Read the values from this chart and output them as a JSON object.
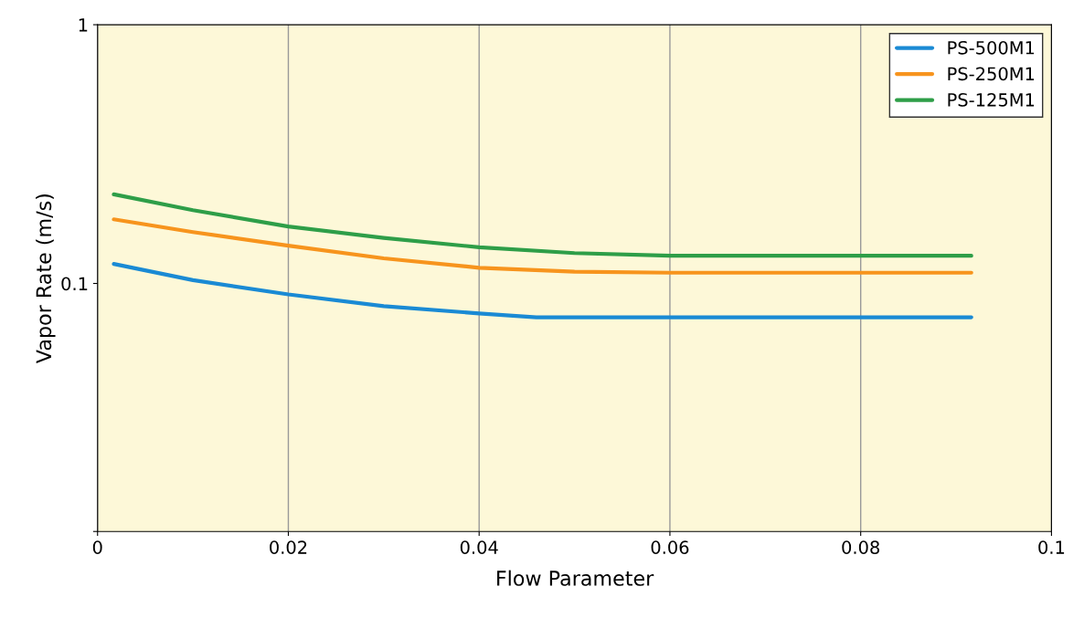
{
  "chart_data": {
    "type": "line",
    "xlabel": "Flow Parameter",
    "ylabel": "Vapor Rate (m/s)",
    "log": "y",
    "xlim": [
      0,
      0.1
    ],
    "xticks": [
      0,
      0.02,
      0.04,
      0.06,
      0.08,
      0.1
    ],
    "ylim": [
      0.011,
      1
    ],
    "yticks": [
      {
        "value": 0.011,
        "label": null
      },
      0.1,
      1
    ],
    "grid": "x",
    "legend": "top right",
    "marker": "none",
    "line_style": "solid",
    "series": [
      {
        "name": "PS-500M1",
        "color": "#1a8ad4",
        "x": [
          0.0017,
          0.01,
          0.02,
          0.03,
          0.04,
          0.046,
          0.06,
          0.08,
          0.0916
        ],
        "values": [
          0.119,
          0.103,
          0.0907,
          0.0817,
          0.0766,
          0.074,
          0.074,
          0.074,
          0.074
        ]
      },
      {
        "name": "PS-250M1",
        "color": "#f7941d",
        "x": [
          0.0017,
          0.01,
          0.02,
          0.03,
          0.04,
          0.05,
          0.06,
          0.08,
          0.0916
        ],
        "values": [
          0.177,
          0.158,
          0.14,
          0.125,
          0.115,
          0.111,
          0.11,
          0.11,
          0.11
        ]
      },
      {
        "name": "PS-125M1",
        "color": "#2e9e48",
        "x": [
          0.0017,
          0.01,
          0.02,
          0.03,
          0.04,
          0.05,
          0.06,
          0.08,
          0.0916
        ],
        "values": [
          0.221,
          0.192,
          0.166,
          0.15,
          0.138,
          0.131,
          0.128,
          0.128,
          0.128
        ]
      }
    ]
  }
}
